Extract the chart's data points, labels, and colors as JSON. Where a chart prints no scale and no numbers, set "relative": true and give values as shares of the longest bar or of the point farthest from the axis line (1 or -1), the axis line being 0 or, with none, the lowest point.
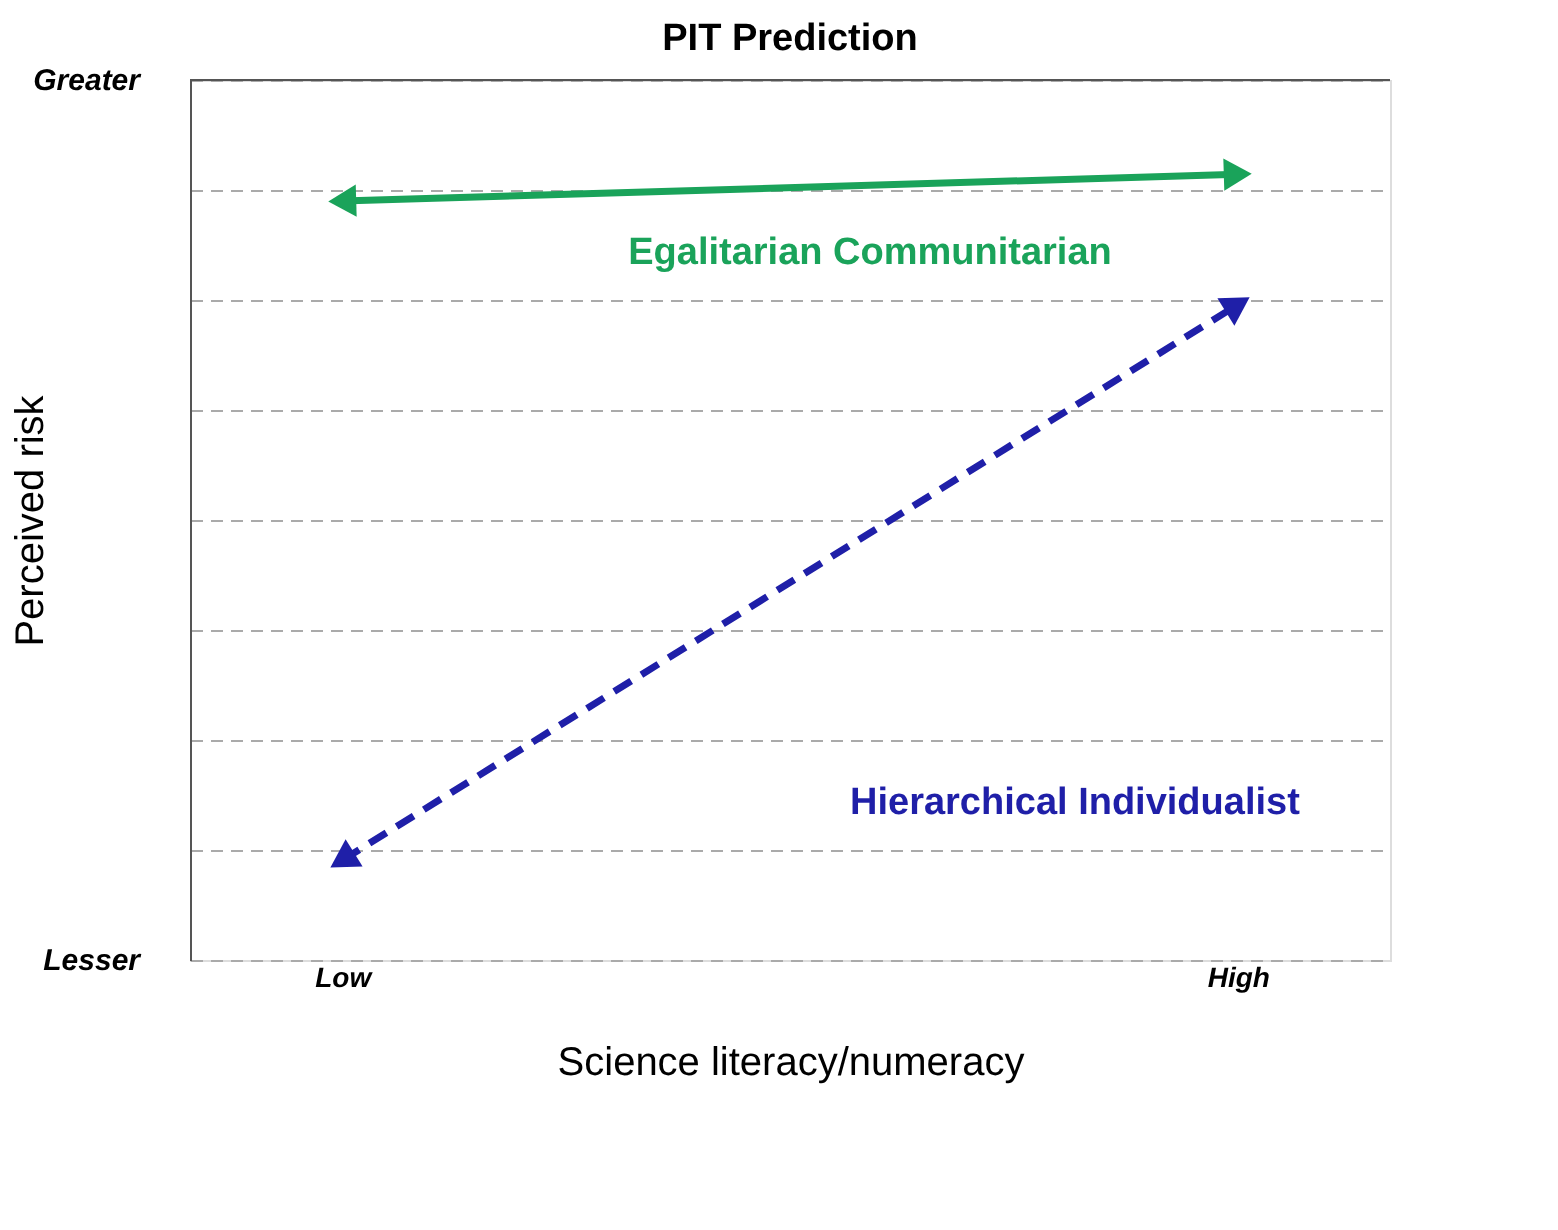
{
  "chart_data": {
    "type": "line",
    "title": "PIT Prediction",
    "xlabel": "Science literacy/numeracy",
    "ylabel": "Perceived risk",
    "categories": [
      "Low",
      "High"
    ],
    "relative": true,
    "annotations": [
      "Greater",
      "Lesser"
    ],
    "grid": "y",
    "marker": "triangle",
    "series": [
      {
        "name": "Egalitarian Communitarian",
        "color": "#1aa35a",
        "values": [
          0.966,
          1
        ],
        "line_style": "solid"
      },
      {
        "name": "Hierarchical Individualist",
        "color": "#1f1fa8",
        "values": [
          0.127,
          0.834
        ],
        "line_style": "dashed"
      }
    ]
  }
}
